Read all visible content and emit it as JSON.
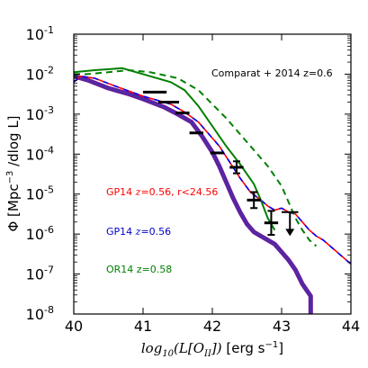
{
  "chart_data": {
    "type": "line",
    "title": "",
    "xlabel": "log10(L[O_II]) [erg s^-1]",
    "ylabel": "Φ [Mpc^-3 /dlog L]",
    "xlim": [
      40,
      44
    ],
    "ylim_log10": [
      -8,
      -1
    ],
    "y_scale": "log",
    "x_ticks": [
      40,
      41,
      42,
      43,
      44
    ],
    "x_tick_labels": [
      "40",
      "41",
      "42",
      "43",
      "44"
    ],
    "y_ticks_log10": [
      -8,
      -7,
      -6,
      -5,
      -4,
      -3,
      -2,
      -1
    ],
    "y_tick_labels": [
      "10-8",
      "10-7",
      "10-6",
      "10-5",
      "10-4",
      "10-3",
      "10-2",
      "10-1"
    ],
    "grid": false,
    "annotations": [
      {
        "text": "Comparat + 2014 z=0.6",
        "color": "#000000"
      },
      {
        "text_pre": "GP14 ",
        "text_z": "z",
        "text_post": "=0.56, r<24.56",
        "color": "#ff0000"
      },
      {
        "text_pre": "GP14 ",
        "text_z": "z",
        "text_post": "=0.56",
        "color": "#0000cc"
      },
      {
        "text_pre": "OR14 z=0.58",
        "text_z": "",
        "text_post": "",
        "color": "#008000"
      }
    ],
    "series": [
      {
        "style": "solid-thick",
        "color": "#6a1b9a",
        "core_color": "#4b2ea8",
        "x": [
          40.0,
          40.2,
          40.5,
          40.8,
          41.0,
          41.3,
          41.5,
          41.7,
          41.85,
          42.0,
          42.1,
          42.2,
          42.3,
          42.4,
          42.5,
          42.6,
          42.7,
          42.8,
          42.9,
          43.0,
          43.1,
          43.2,
          43.3,
          43.42,
          43.42
        ],
        "log_y": [
          -2.05,
          -2.15,
          -2.35,
          -2.5,
          -2.62,
          -2.82,
          -3.0,
          -3.2,
          -3.55,
          -3.95,
          -4.3,
          -4.7,
          -5.1,
          -5.45,
          -5.75,
          -5.95,
          -6.05,
          -6.15,
          -6.25,
          -6.45,
          -6.65,
          -6.9,
          -7.25,
          -7.55,
          -8.0
        ]
      },
      {
        "style": "dashed-rb",
        "color": "#ff0000",
        "dash_color": "#0000ff",
        "x": [
          40.0,
          40.1,
          40.3,
          40.6,
          41.0,
          41.4,
          41.6,
          41.8,
          41.95,
          42.1,
          42.25,
          42.4,
          42.55,
          42.7,
          42.8,
          42.9,
          43.0,
          43.1,
          43.2,
          43.3,
          43.4,
          43.5,
          43.6,
          43.7,
          43.8,
          43.9,
          44.0
        ],
        "log_y": [
          -2.2,
          -2.05,
          -2.1,
          -2.3,
          -2.55,
          -2.75,
          -2.95,
          -3.2,
          -3.5,
          -3.8,
          -4.2,
          -4.6,
          -4.95,
          -5.15,
          -5.3,
          -5.4,
          -5.35,
          -5.45,
          -5.5,
          -5.7,
          -5.9,
          -6.05,
          -6.15,
          -6.3,
          -6.45,
          -6.6,
          -6.75
        ]
      },
      {
        "style": "solid",
        "color": "#008000",
        "x": [
          40.0,
          40.3,
          40.7,
          41.0,
          41.4,
          41.6,
          41.8,
          42.0,
          42.2,
          42.4,
          42.6,
          42.7,
          42.8,
          42.9
        ],
        "log_y": [
          -1.95,
          -1.9,
          -1.85,
          -2.0,
          -2.2,
          -2.4,
          -2.8,
          -3.3,
          -3.8,
          -4.25,
          -4.75,
          -5.15,
          -5.6,
          -5.9
        ]
      },
      {
        "style": "dashed",
        "color": "#008000",
        "x": [
          40.0,
          40.2,
          40.5,
          40.8,
          41.1,
          41.5,
          41.8,
          42.0,
          42.2,
          42.4,
          42.6,
          42.8,
          43.0,
          43.1,
          43.2,
          43.3,
          43.4,
          43.5
        ],
        "log_y": [
          -2.0,
          -2.0,
          -1.95,
          -1.9,
          -1.95,
          -2.1,
          -2.4,
          -2.75,
          -3.1,
          -3.5,
          -3.9,
          -4.3,
          -4.8,
          -5.2,
          -5.6,
          -5.9,
          -6.15,
          -6.3
        ]
      }
    ],
    "data_points": [
      {
        "x": 41.17,
        "log_y": -2.45,
        "xerr": 0.17,
        "yerr": 0.0
      },
      {
        "x": 41.37,
        "log_y": -2.7,
        "xerr": 0.15,
        "yerr": 0.0
      },
      {
        "x": 41.57,
        "log_y": -2.97,
        "xerr": 0.1,
        "yerr": 0.0
      },
      {
        "x": 41.77,
        "log_y": -3.47,
        "xerr": 0.1,
        "yerr": 0.0
      },
      {
        "x": 42.07,
        "log_y": -3.97,
        "xerr": 0.1,
        "yerr": 0.0
      },
      {
        "x": 42.35,
        "log_y": -4.33,
        "xerr": 0.1,
        "yerr": 0.15
      },
      {
        "x": 42.6,
        "log_y": -5.15,
        "xerr": 0.1,
        "yerr": 0.2
      },
      {
        "x": 42.85,
        "log_y": -5.72,
        "xerr": 0.1,
        "yerr": 0.3
      }
    ],
    "upper_limits": [
      {
        "x": 43.12,
        "log_y": -5.45,
        "xerr": 0.12,
        "arrow_to_log_y": -6.05
      }
    ]
  }
}
